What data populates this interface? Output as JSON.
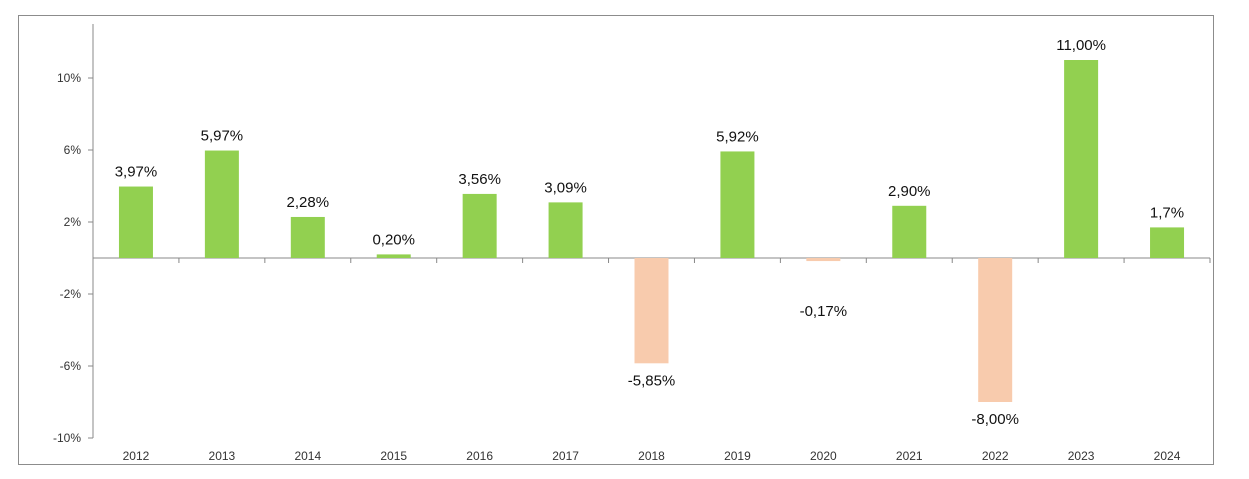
{
  "chart_data": {
    "type": "bar",
    "categories": [
      "2012",
      "2013",
      "2014",
      "2015",
      "2016",
      "2017",
      "2018",
      "2019",
      "2020",
      "2021",
      "2022",
      "2023",
      "2024"
    ],
    "values": [
      3.97,
      5.97,
      2.28,
      0.2,
      3.56,
      3.09,
      -5.85,
      5.92,
      -0.17,
      2.9,
      -8.0,
      11.0,
      1.7
    ],
    "data_labels": [
      "3,97%",
      "5,97%",
      "2,28%",
      "0,20%",
      "3,56%",
      "3,09%",
      "-5,85%",
      "5,92%",
      "-0,17%",
      "2,90%",
      "-8,00%",
      "11,00%",
      "1,7%"
    ],
    "y_ticks": [
      10,
      6,
      2,
      -2,
      -6,
      -10
    ],
    "y_tick_labels": [
      "10%",
      "6%",
      "2%",
      "-2%",
      "-6%",
      "-10%"
    ],
    "ylim": [
      -10,
      13
    ],
    "title": "",
    "xlabel": "",
    "ylabel": "",
    "grid": false,
    "legend": "none",
    "colors": {
      "positive": "#92d050",
      "negative": "#f8cbad",
      "axis": "#888888"
    }
  }
}
